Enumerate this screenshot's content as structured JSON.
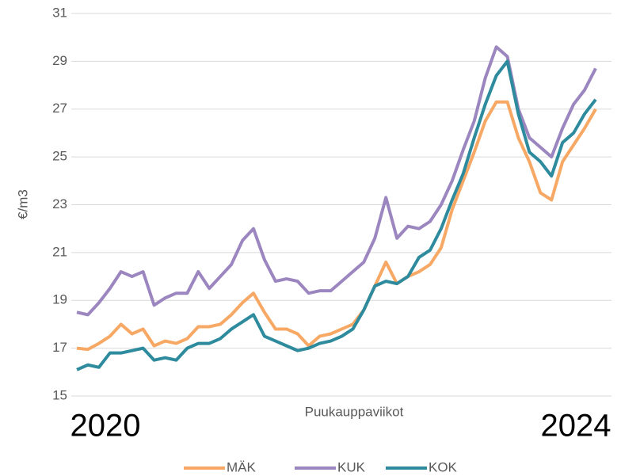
{
  "chart_data": {
    "type": "line",
    "y_label": "€/m3",
    "x_label": "Puukauppaviikot",
    "annotations": [
      "2020",
      "2024"
    ],
    "x": [
      0,
      1,
      2,
      3,
      4,
      5,
      6,
      7,
      8,
      9,
      10,
      11,
      12,
      13,
      14,
      15,
      16,
      17,
      18,
      19,
      20,
      21,
      22,
      23,
      24,
      25,
      26,
      27,
      28,
      29,
      30,
      31,
      32,
      33,
      34,
      35,
      36,
      37,
      38,
      39,
      40,
      41,
      42,
      43,
      44,
      45,
      46,
      47
    ],
    "xlim": [
      0,
      47
    ],
    "ylim": [
      15,
      31
    ],
    "yticks": [
      15,
      17,
      19,
      21,
      23,
      25,
      27,
      29,
      31
    ],
    "grid": true,
    "legend": "bottom",
    "series": [
      {
        "name": "MÄK",
        "color": "#f7a865",
        "values": [
          17.0,
          16.95,
          17.2,
          17.5,
          18.0,
          17.6,
          17.8,
          17.1,
          17.3,
          17.2,
          17.4,
          17.9,
          17.9,
          18.0,
          18.4,
          18.9,
          19.3,
          18.5,
          17.8,
          17.8,
          17.6,
          17.1,
          17.5,
          17.6,
          17.8,
          18.0,
          18.6,
          19.6,
          20.6,
          19.7,
          20.0,
          20.2,
          20.5,
          21.2,
          22.8,
          24.0,
          25.2,
          26.5,
          27.3,
          27.3,
          25.8,
          24.8,
          23.5,
          23.2,
          24.8,
          25.5,
          26.2,
          27.0
        ]
      },
      {
        "name": "KUK",
        "color": "#9c86bf",
        "values": [
          18.5,
          18.4,
          18.9,
          19.5,
          20.2,
          20.0,
          20.2,
          18.8,
          19.1,
          19.3,
          19.3,
          20.2,
          19.5,
          20.0,
          20.5,
          21.5,
          22.0,
          20.7,
          19.8,
          19.9,
          19.8,
          19.3,
          19.4,
          19.4,
          19.8,
          20.2,
          20.6,
          21.6,
          23.3,
          21.6,
          22.1,
          22.0,
          22.3,
          23.0,
          24.0,
          25.3,
          26.5,
          28.3,
          29.6,
          29.2,
          27.0,
          25.8,
          25.4,
          25.0,
          26.2,
          27.2,
          27.8,
          28.7
        ]
      },
      {
        "name": "KOK",
        "color": "#2e8b9d",
        "values": [
          16.1,
          16.3,
          16.2,
          16.8,
          16.8,
          16.9,
          17.0,
          16.5,
          16.6,
          16.5,
          17.0,
          17.2,
          17.2,
          17.4,
          17.8,
          18.1,
          18.4,
          17.5,
          17.3,
          17.1,
          16.9,
          17.0,
          17.2,
          17.3,
          17.5,
          17.8,
          18.6,
          19.6,
          19.8,
          19.7,
          20.0,
          20.8,
          21.1,
          22.0,
          23.2,
          24.3,
          25.8,
          27.2,
          28.4,
          29.0,
          26.8,
          25.2,
          24.8,
          24.2,
          25.6,
          26.0,
          26.8,
          27.4
        ]
      }
    ]
  }
}
